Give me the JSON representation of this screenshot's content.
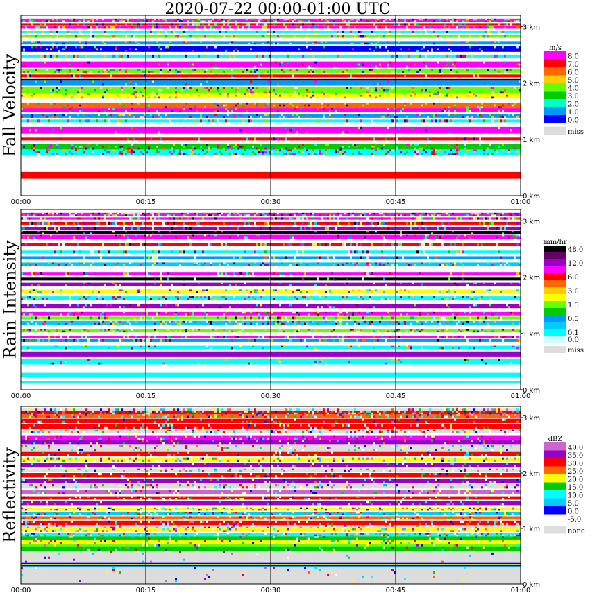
{
  "title": "2020-07-22   00:00-01:00 UTC",
  "time_ticks": [
    "00:00",
    "00:15",
    "00:30",
    "00:45",
    "01:00"
  ],
  "height_ticks": [
    "0 km",
    "1 km",
    "2 km",
    "3 km"
  ],
  "chart_data": [
    {
      "type": "heatmap",
      "title": "Fall Velocity",
      "xlabel": "",
      "ylabel": "Fall Velocity",
      "x_range": [
        "00:00",
        "01:00"
      ],
      "y_range_km": [
        0,
        3.2
      ],
      "legend_unit": "m/s",
      "legend": [
        {
          "label": "8.0",
          "color": "#ff00ff"
        },
        {
          "label": "7.0",
          "color": "#ff0000"
        },
        {
          "label": "6.0",
          "color": "#ff6600"
        },
        {
          "label": "5.0",
          "color": "#ffcc00"
        },
        {
          "label": "4.0",
          "color": "#66ff00"
        },
        {
          "label": "3.0",
          "color": "#00cc00"
        },
        {
          "label": "2.0",
          "color": "#00ffcc"
        },
        {
          "label": "1.0",
          "color": "#0099ff"
        },
        {
          "label": "0.0",
          "color": "#0000ff"
        },
        {
          "label": "miss",
          "color": "#dddddd"
        }
      ],
      "bands": [
        {
          "y0": 0.3,
          "y1": 0.42,
          "color": "#ff0000",
          "noise": 0.0
        },
        {
          "y0": 0.72,
          "y1": 0.82,
          "color": "#00ffff",
          "noise": 0.3
        },
        {
          "y0": 0.82,
          "y1": 0.92,
          "color": "#00cc00",
          "noise": 0.2
        },
        {
          "y0": 0.98,
          "y1": 1.03,
          "color": "#ff0000",
          "noise": 0.1
        },
        {
          "y0": 1.1,
          "y1": 1.22,
          "color": "#ff00ff",
          "noise": 0.05
        },
        {
          "y0": 1.3,
          "y1": 1.35,
          "color": "#00ffff",
          "noise": 0.2
        },
        {
          "y0": 1.38,
          "y1": 1.45,
          "color": "#0099ff",
          "noise": 0.25
        },
        {
          "y0": 1.48,
          "y1": 1.55,
          "color": "#ff00ff",
          "noise": 0.1
        },
        {
          "y0": 1.55,
          "y1": 1.65,
          "color": "#ff6600",
          "noise": 0.1
        },
        {
          "y0": 1.72,
          "y1": 1.82,
          "color": "#ffff00",
          "noise": 0.1
        },
        {
          "y0": 1.82,
          "y1": 1.92,
          "color": "#66ff00",
          "noise": 0.15
        },
        {
          "y0": 1.95,
          "y1": 2.04,
          "color": "#0099ff",
          "noise": 0.05
        },
        {
          "y0": 2.04,
          "y1": 2.07,
          "color": "#000000",
          "noise": 0.0
        },
        {
          "y0": 2.1,
          "y1": 2.15,
          "color": "#ff0000",
          "noise": 0.1
        },
        {
          "y0": 2.18,
          "y1": 2.24,
          "color": "#66ff00",
          "noise": 0.25
        },
        {
          "y0": 2.27,
          "y1": 2.38,
          "color": "#ff00ff",
          "noise": 0.05
        },
        {
          "y0": 2.45,
          "y1": 2.5,
          "color": "#00ffff",
          "noise": 0.2
        },
        {
          "y0": 2.55,
          "y1": 2.65,
          "color": "#0000ff",
          "noise": 0.1
        },
        {
          "y0": 2.68,
          "y1": 2.74,
          "color": "#0099ff",
          "noise": 0.15
        },
        {
          "y0": 2.8,
          "y1": 2.85,
          "color": "#66ff00",
          "noise": 0.2
        },
        {
          "y0": 2.88,
          "y1": 2.93,
          "color": "#00ffff",
          "noise": 0.2
        },
        {
          "y0": 2.96,
          "y1": 3.01,
          "color": "#ff00ff",
          "noise": 0.3
        },
        {
          "y0": 3.02,
          "y1": 3.06,
          "color": "#ff0000",
          "noise": 0.3
        },
        {
          "y0": 3.08,
          "y1": 3.14,
          "color": "#ff00ff",
          "noise": 0.5
        }
      ]
    },
    {
      "type": "heatmap",
      "title": "Rain Intensity",
      "xlabel": "",
      "ylabel": "Rain Intensity",
      "x_range": [
        "00:00",
        "01:00"
      ],
      "y_range_km": [
        0,
        3.2
      ],
      "legend_unit": "mm/hr",
      "legend": [
        {
          "label": "48.0",
          "color": "#000000"
        },
        {
          "label": "",
          "color": "#660066"
        },
        {
          "label": "12.0",
          "color": "#9900cc"
        },
        {
          "label": "",
          "color": "#ff00ff"
        },
        {
          "label": "6.0",
          "color": "#ff0000"
        },
        {
          "label": "",
          "color": "#ff6600"
        },
        {
          "label": "3.0",
          "color": "#ffcc00"
        },
        {
          "label": "",
          "color": "#ffff00"
        },
        {
          "label": "1.5",
          "color": "#66ff00"
        },
        {
          "label": "",
          "color": "#00cc00"
        },
        {
          "label": "0.5",
          "color": "#0099ff"
        },
        {
          "label": "",
          "color": "#00ccff"
        },
        {
          "label": "0.1",
          "color": "#00ffff"
        },
        {
          "label": "0.0",
          "color": "#ccffff"
        },
        {
          "label": "miss",
          "color": "#dddddd"
        }
      ],
      "bands": [
        {
          "y0": 0.12,
          "y1": 0.16,
          "color": "#00ffff",
          "noise": 0.0
        },
        {
          "y0": 0.22,
          "y1": 0.3,
          "color": "#00ffff",
          "noise": 0.0
        },
        {
          "y0": 0.45,
          "y1": 0.55,
          "color": "#00ffff",
          "noise": 0.05
        },
        {
          "y0": 0.58,
          "y1": 0.68,
          "color": "#9900cc",
          "noise": 0.0
        },
        {
          "y0": 0.72,
          "y1": 0.78,
          "color": "#00ffff",
          "noise": 0.1
        },
        {
          "y0": 0.85,
          "y1": 0.9,
          "color": "#0099ff",
          "noise": 0.2
        },
        {
          "y0": 0.92,
          "y1": 0.96,
          "color": "#ff00ff",
          "noise": 0.2
        },
        {
          "y0": 1.02,
          "y1": 1.08,
          "color": "#66ff00",
          "noise": 0.25
        },
        {
          "y0": 1.15,
          "y1": 1.22,
          "color": "#00ccff",
          "noise": 0.3
        },
        {
          "y0": 1.25,
          "y1": 1.3,
          "color": "#66ff00",
          "noise": 0.25
        },
        {
          "y0": 1.32,
          "y1": 1.38,
          "color": "#ff00ff",
          "noise": 0.15
        },
        {
          "y0": 1.45,
          "y1": 1.52,
          "color": "#9900cc",
          "noise": 0.1
        },
        {
          "y0": 1.6,
          "y1": 1.66,
          "color": "#00ffff",
          "noise": 0.2
        },
        {
          "y0": 1.72,
          "y1": 1.78,
          "color": "#ffff00",
          "noise": 0.2
        },
        {
          "y0": 1.84,
          "y1": 1.9,
          "color": "#9900cc",
          "noise": 0.1
        },
        {
          "y0": 1.94,
          "y1": 1.99,
          "color": "#000000",
          "noise": 0.05
        },
        {
          "y0": 2.04,
          "y1": 2.09,
          "color": "#ff00ff",
          "noise": 0.15
        },
        {
          "y0": 2.2,
          "y1": 2.26,
          "color": "#00ccff",
          "noise": 0.2
        },
        {
          "y0": 2.32,
          "y1": 2.37,
          "color": "#0099ff",
          "noise": 0.15
        },
        {
          "y0": 2.42,
          "y1": 2.47,
          "color": "#00ffff",
          "noise": 0.2
        },
        {
          "y0": 2.55,
          "y1": 2.6,
          "color": "#ff0000",
          "noise": 0.25
        },
        {
          "y0": 2.68,
          "y1": 2.75,
          "color": "#ff00ff",
          "noise": 0.15
        },
        {
          "y0": 2.76,
          "y1": 2.82,
          "color": "#000000",
          "noise": 0.05
        },
        {
          "y0": 2.84,
          "y1": 2.89,
          "color": "#9900cc",
          "noise": 0.2
        },
        {
          "y0": 2.93,
          "y1": 2.98,
          "color": "#ff0000",
          "noise": 0.3
        },
        {
          "y0": 3.02,
          "y1": 3.06,
          "color": "#ff00ff",
          "noise": 0.35
        },
        {
          "y0": 3.08,
          "y1": 3.14,
          "color": "#ff00ff",
          "noise": 0.5
        }
      ]
    },
    {
      "type": "heatmap",
      "title": "Reflectivity",
      "xlabel": "",
      "ylabel": "Reflectivity",
      "x_range": [
        "00:00",
        "01:00"
      ],
      "y_range_km": [
        0,
        3.2
      ],
      "legend_unit": "dBZ",
      "legend": [
        {
          "label": "40.0",
          "color": "#cc66cc"
        },
        {
          "label": "35.0",
          "color": "#9900cc"
        },
        {
          "label": "30.0",
          "color": "#ff0000"
        },
        {
          "label": "25.0",
          "color": "#ff6600"
        },
        {
          "label": "20.0",
          "color": "#ffff00"
        },
        {
          "label": "15.0",
          "color": "#00cc00"
        },
        {
          "label": "10.0",
          "color": "#00ffff"
        },
        {
          "label": "5.0",
          "color": "#00ccff"
        },
        {
          "label": "0.0",
          "color": "#0000ff"
        },
        {
          "label": "-5.0",
          "color": "#ffffff"
        },
        {
          "label": "none",
          "color": "#dddddd"
        }
      ],
      "bands": [
        {
          "y0": 0.0,
          "y1": 0.3,
          "color": "#dddddd",
          "noise": 0.02
        },
        {
          "y0": 0.3,
          "y1": 0.32,
          "color": "#00ffff",
          "noise": 0.0
        },
        {
          "y0": 0.32,
          "y1": 0.34,
          "color": "#0000ff",
          "noise": 0.0
        },
        {
          "y0": 0.34,
          "y1": 0.36,
          "color": "#ffff00",
          "noise": 0.0
        },
        {
          "y0": 0.36,
          "y1": 0.38,
          "color": "#0000ff",
          "noise": 0.0
        },
        {
          "y0": 0.38,
          "y1": 0.6,
          "color": "#dddddd",
          "noise": 0.02
        },
        {
          "y0": 0.6,
          "y1": 0.68,
          "color": "#00cc00",
          "noise": 0.05
        },
        {
          "y0": 0.68,
          "y1": 0.72,
          "color": "#66ff00",
          "noise": 0.1
        },
        {
          "y0": 0.72,
          "y1": 0.8,
          "color": "#ffff00",
          "noise": 0.1
        },
        {
          "y0": 0.8,
          "y1": 0.86,
          "color": "#00cc00",
          "noise": 0.1
        },
        {
          "y0": 0.86,
          "y1": 0.92,
          "color": "#00ffff",
          "noise": 0.25
        },
        {
          "y0": 0.94,
          "y1": 1.0,
          "color": "#ffff00",
          "noise": 0.2
        },
        {
          "y0": 1.0,
          "y1": 1.06,
          "color": "#dddddd",
          "noise": 0.1
        },
        {
          "y0": 1.06,
          "y1": 1.14,
          "color": "#ff0000",
          "noise": 0.2
        },
        {
          "y0": 1.16,
          "y1": 1.22,
          "color": "#ff6600",
          "noise": 0.2
        },
        {
          "y0": 1.24,
          "y1": 1.3,
          "color": "#00ccff",
          "noise": 0.25
        },
        {
          "y0": 1.32,
          "y1": 1.38,
          "color": "#ffff00",
          "noise": 0.2
        },
        {
          "y0": 1.42,
          "y1": 1.5,
          "color": "#9900cc",
          "noise": 0.1
        },
        {
          "y0": 1.52,
          "y1": 1.58,
          "color": "#ff0000",
          "noise": 0.15
        },
        {
          "y0": 1.62,
          "y1": 1.7,
          "color": "#cc66cc",
          "noise": 0.15
        },
        {
          "y0": 1.72,
          "y1": 1.8,
          "color": "#dddddd",
          "noise": 0.2
        },
        {
          "y0": 1.82,
          "y1": 1.9,
          "color": "#9900cc",
          "noise": 0.1
        },
        {
          "y0": 1.92,
          "y1": 2.0,
          "color": "#ff0000",
          "noise": 0.15
        },
        {
          "y0": 2.02,
          "y1": 2.08,
          "color": "#dddddd",
          "noise": 0.2
        },
        {
          "y0": 2.1,
          "y1": 2.18,
          "color": "#9900cc",
          "noise": 0.1
        },
        {
          "y0": 2.2,
          "y1": 2.28,
          "color": "#ffff00",
          "noise": 0.2
        },
        {
          "y0": 2.3,
          "y1": 2.38,
          "color": "#ff0000",
          "noise": 0.1
        },
        {
          "y0": 2.4,
          "y1": 2.5,
          "color": "#dddddd",
          "noise": 0.15
        },
        {
          "y0": 2.52,
          "y1": 2.6,
          "color": "#9900cc",
          "noise": 0.1
        },
        {
          "y0": 2.6,
          "y1": 2.68,
          "color": "#ff00ff",
          "noise": 0.15
        },
        {
          "y0": 2.72,
          "y1": 2.78,
          "color": "#dddddd",
          "noise": 0.2
        },
        {
          "y0": 2.8,
          "y1": 2.88,
          "color": "#ff0000",
          "noise": 0.15
        },
        {
          "y0": 2.9,
          "y1": 2.98,
          "color": "#ff0000",
          "noise": 0.1
        },
        {
          "y0": 3.0,
          "y1": 3.06,
          "color": "#ff6600",
          "noise": 0.3
        },
        {
          "y0": 3.06,
          "y1": 3.12,
          "color": "#ff0000",
          "noise": 0.3
        },
        {
          "y0": 3.12,
          "y1": 3.16,
          "color": "#dddddd",
          "noise": 0.3
        }
      ]
    }
  ]
}
